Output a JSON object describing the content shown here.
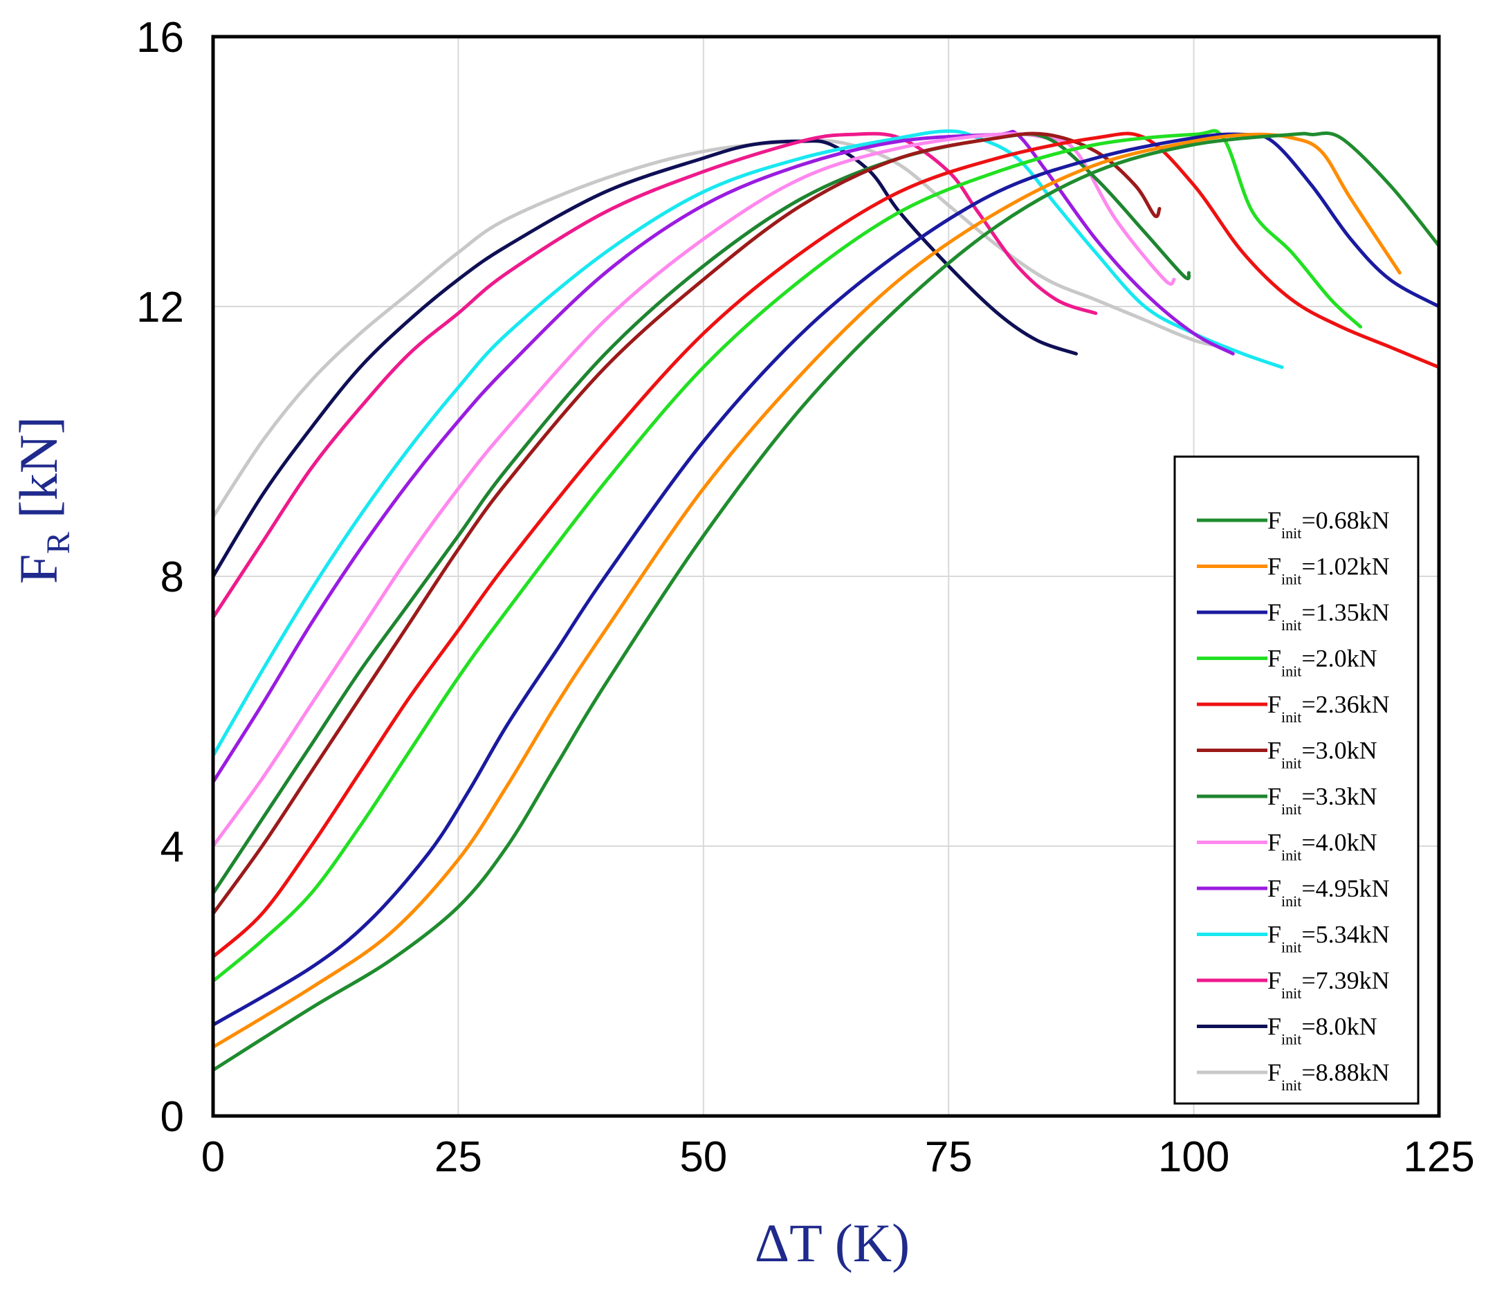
{
  "chart_data": {
    "type": "line",
    "title": "",
    "xlabel": "ΔT (K)",
    "ylabel": {
      "main": "F",
      "subscript": "R",
      "unit": " [kN]"
    },
    "xlim": [
      0,
      125
    ],
    "ylim": [
      0,
      16
    ],
    "xticks": [
      "0",
      "25",
      "50",
      "75",
      "100",
      "125"
    ],
    "yticks": [
      "0",
      "4",
      "8",
      "12",
      "16"
    ],
    "grid": true,
    "legend_position": "right-middle",
    "series": [
      {
        "name": "F_init=0.68kN",
        "label_pre": "F",
        "label_sub": "init",
        "label_post": "=0.68kN",
        "color": "#1f8c2e",
        "x": [
          0,
          10,
          18,
          25,
          30,
          35,
          40,
          50,
          60,
          70,
          80,
          90,
          100,
          110,
          112,
          115,
          120,
          125
        ],
        "y": [
          0.68,
          1.6,
          2.3,
          3.1,
          4.0,
          5.2,
          6.4,
          8.6,
          10.5,
          12.0,
          13.2,
          14.0,
          14.4,
          14.55,
          14.55,
          14.5,
          13.8,
          12.9
        ]
      },
      {
        "name": "F_init=1.02kN",
        "label_pre": "F",
        "label_sub": "init",
        "label_post": "=1.02kN",
        "color": "#ff8c00",
        "x": [
          0,
          10,
          18,
          25,
          30,
          35,
          40,
          50,
          60,
          70,
          80,
          90,
          100,
          106,
          110,
          113,
          116,
          121
        ],
        "y": [
          1.02,
          1.9,
          2.7,
          3.8,
          4.9,
          6.1,
          7.2,
          9.3,
          11.0,
          12.4,
          13.4,
          14.1,
          14.45,
          14.55,
          14.5,
          14.3,
          13.6,
          12.5
        ]
      },
      {
        "name": "F_init=1.35kN",
        "label_pre": "F",
        "label_sub": "init",
        "label_post": "=1.35kN",
        "color": "#1a1aa0",
        "x": [
          0,
          10,
          16,
          22,
          26,
          30,
          35,
          40,
          50,
          60,
          70,
          80,
          90,
          100,
          105,
          108,
          112,
          116,
          120,
          125
        ],
        "y": [
          1.35,
          2.2,
          2.9,
          3.9,
          4.8,
          5.8,
          6.9,
          8.0,
          10.0,
          11.6,
          12.8,
          13.7,
          14.2,
          14.5,
          14.55,
          14.45,
          13.8,
          13.0,
          12.4,
          12.0
        ]
      },
      {
        "name": "F_init=2.0kN",
        "label_pre": "F",
        "label_sub": "init",
        "label_post": "=2.0kN",
        "color": "#22e022",
        "x": [
          0,
          5,
          10,
          15,
          20,
          25,
          30,
          40,
          50,
          60,
          70,
          80,
          90,
          100,
          103,
          106,
          110,
          114,
          117
        ],
        "y": [
          2.0,
          2.6,
          3.3,
          4.3,
          5.4,
          6.5,
          7.5,
          9.4,
          11.1,
          12.4,
          13.4,
          14.0,
          14.4,
          14.55,
          14.5,
          13.4,
          12.8,
          12.1,
          11.7
        ]
      },
      {
        "name": "F_init=2.36kN",
        "label_pre": "F",
        "label_sub": "init",
        "label_post": "=2.36kN",
        "color": "#ee1111",
        "x": [
          0,
          5,
          10,
          15,
          20,
          25,
          30,
          40,
          50,
          60,
          70,
          80,
          90,
          95,
          100,
          105,
          110,
          115,
          120,
          125
        ],
        "y": [
          2.36,
          3.0,
          4.0,
          5.1,
          6.2,
          7.2,
          8.2,
          10.0,
          11.6,
          12.8,
          13.7,
          14.2,
          14.5,
          14.5,
          13.8,
          12.8,
          12.1,
          11.7,
          11.4,
          11.1
        ]
      },
      {
        "name": "F_init=3.0kN",
        "label_pre": "F",
        "label_sub": "init",
        "label_post": "=3.0kN",
        "color": "#9c1a1a",
        "x": [
          0,
          5,
          10,
          15,
          20,
          25,
          30,
          40,
          50,
          60,
          70,
          80,
          85,
          90,
          94,
          96,
          96.5
        ],
        "y": [
          3.0,
          4.0,
          5.1,
          6.2,
          7.3,
          8.4,
          9.4,
          11.1,
          12.4,
          13.5,
          14.2,
          14.5,
          14.55,
          14.3,
          13.8,
          13.35,
          13.45
        ]
      },
      {
        "name": "F_init=3.3kN",
        "label_pre": "F",
        "label_sub": "init",
        "label_post": "=3.3kN",
        "color": "#1e8530",
        "x": [
          0,
          5,
          10,
          15,
          20,
          25,
          30,
          40,
          50,
          60,
          70,
          80,
          85,
          90,
          95,
          99,
          99.5
        ],
        "y": [
          3.3,
          4.4,
          5.5,
          6.6,
          7.6,
          8.6,
          9.6,
          11.3,
          12.6,
          13.6,
          14.2,
          14.5,
          14.5,
          13.9,
          13.1,
          12.45,
          12.5
        ]
      },
      {
        "name": "F_init=4.0kN",
        "label_pre": "F",
        "label_sub": "init",
        "label_post": "=4.0kN",
        "color": "#ff88ee",
        "x": [
          0,
          5,
          10,
          15,
          20,
          25,
          30,
          40,
          50,
          60,
          70,
          80,
          85,
          88,
          92,
          97,
          98
        ],
        "y": [
          4.0,
          5.0,
          6.1,
          7.2,
          8.3,
          9.3,
          10.2,
          11.8,
          13.0,
          13.9,
          14.35,
          14.55,
          14.5,
          14.3,
          13.3,
          12.4,
          12.4
        ]
      },
      {
        "name": "F_init=4.95kN",
        "label_pre": "F",
        "label_sub": "init",
        "label_post": "=4.95kN",
        "color": "#9a1ce0",
        "x": [
          0,
          5,
          10,
          15,
          20,
          25,
          30,
          40,
          50,
          60,
          70,
          80,
          82,
          85,
          90,
          95,
          100,
          104
        ],
        "y": [
          4.95,
          6.1,
          7.3,
          8.4,
          9.4,
          10.3,
          11.1,
          12.5,
          13.5,
          14.1,
          14.45,
          14.55,
          14.55,
          14.0,
          13.0,
          12.2,
          11.6,
          11.3
        ]
      },
      {
        "name": "F_init=5.34kN",
        "label_pre": "F",
        "label_sub": "init",
        "label_post": "=5.34kN",
        "color": "#18e8f0",
        "x": [
          0,
          5,
          10,
          15,
          20,
          25,
          30,
          40,
          50,
          60,
          70,
          75,
          78,
          82,
          86,
          90,
          95,
          100,
          105,
          109
        ],
        "y": [
          5.34,
          6.6,
          7.8,
          8.9,
          9.9,
          10.8,
          11.6,
          12.8,
          13.7,
          14.2,
          14.5,
          14.6,
          14.5,
          14.2,
          13.5,
          12.8,
          12.0,
          11.6,
          11.3,
          11.1
        ]
      },
      {
        "name": "F_init=7.39kN",
        "label_pre": "F",
        "label_sub": "init",
        "label_post": "=7.39kN",
        "color": "#ee1a8c",
        "x": [
          0,
          5,
          10,
          15,
          20,
          25,
          30,
          40,
          50,
          60,
          65,
          70,
          75,
          78,
          82,
          86,
          90
        ],
        "y": [
          7.39,
          8.5,
          9.6,
          10.5,
          11.3,
          11.9,
          12.5,
          13.4,
          14.0,
          14.45,
          14.55,
          14.5,
          14.0,
          13.4,
          12.6,
          12.1,
          11.9
        ]
      },
      {
        "name": "F_init=8.0kN",
        "label_pre": "F",
        "label_sub": "init",
        "label_post": "=8.0kN",
        "color": "#0f0f55",
        "x": [
          0,
          5,
          10,
          15,
          20,
          25,
          30,
          40,
          50,
          55,
          60,
          63,
          67,
          70,
          75,
          80,
          84,
          88
        ],
        "y": [
          8.0,
          9.2,
          10.2,
          11.1,
          11.8,
          12.4,
          12.9,
          13.7,
          14.2,
          14.4,
          14.45,
          14.4,
          14.0,
          13.4,
          12.6,
          11.9,
          11.5,
          11.3
        ]
      },
      {
        "name": "F_init=8.88kN",
        "label_pre": "F",
        "label_sub": "init",
        "label_post": "=8.88kN",
        "color": "#c8c8c8",
        "x": [
          0,
          5,
          10,
          15,
          20,
          25,
          30,
          40,
          50,
          60,
          65,
          70,
          75,
          80,
          85,
          90,
          95,
          100,
          103
        ],
        "y": [
          8.88,
          10.0,
          10.9,
          11.6,
          12.2,
          12.8,
          13.3,
          13.9,
          14.3,
          14.45,
          14.4,
          14.1,
          13.5,
          12.9,
          12.4,
          12.1,
          11.8,
          11.5,
          11.4
        ]
      }
    ]
  }
}
